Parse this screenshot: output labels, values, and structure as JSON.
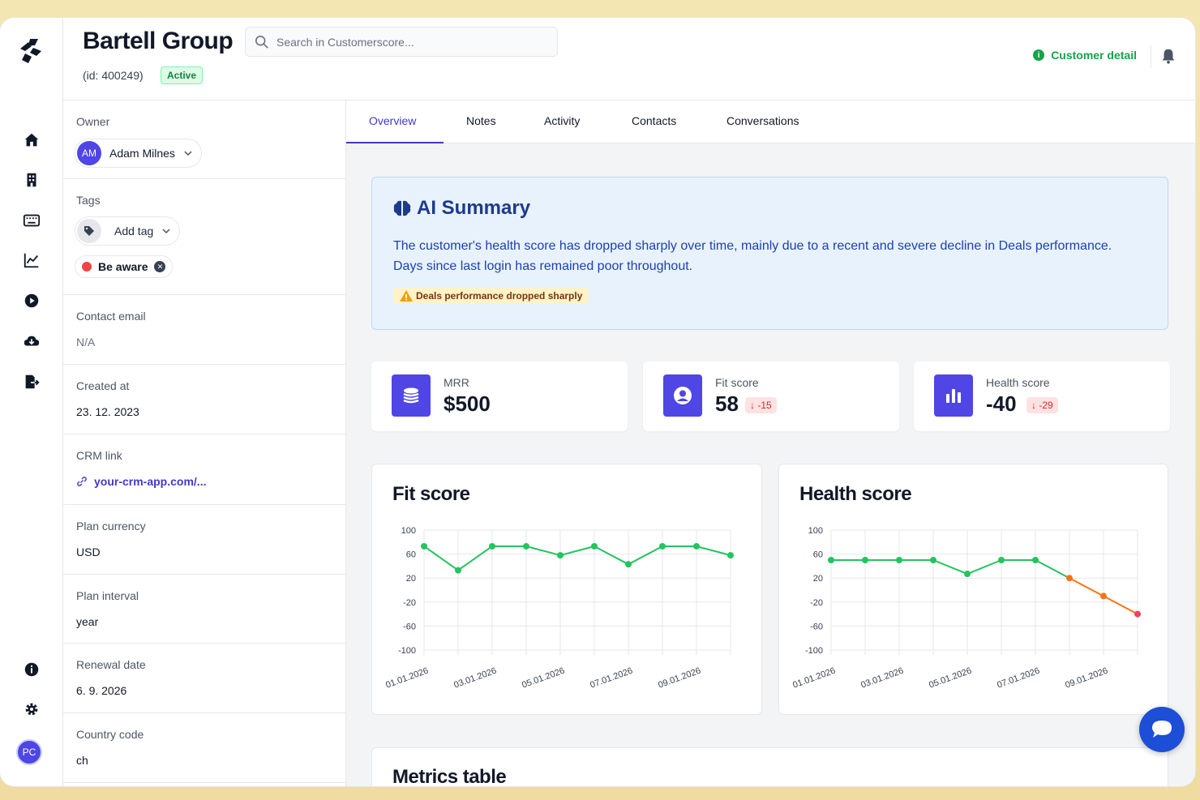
{
  "header": {
    "company_name": "Bartell Group",
    "company_id": "(id: 400249)",
    "status_badge": "Active",
    "search_placeholder": "Search in Customerscore...",
    "customer_detail_label": "Customer detail"
  },
  "rail": {
    "icons": [
      "home-icon",
      "building-icon",
      "keyboard-icon",
      "chart-line-icon",
      "play-circle-icon",
      "cloud-download-icon",
      "file-export-icon",
      "info-icon",
      "gear-icon"
    ],
    "user_initials": "PC"
  },
  "panel": {
    "owner": {
      "label": "Owner",
      "initials": "AM",
      "name": "Adam Milnes"
    },
    "tags": {
      "label": "Tags",
      "add_label": "Add tag",
      "items": [
        {
          "name": "Be aware",
          "color": "#ef4444"
        }
      ]
    },
    "contact_email": {
      "label": "Contact email",
      "value": "N/A"
    },
    "created_at": {
      "label": "Created at",
      "value": "23. 12. 2023"
    },
    "crm_link": {
      "label": "CRM link",
      "value": "your-crm-app.com/..."
    },
    "plan_currency": {
      "label": "Plan currency",
      "value": "USD"
    },
    "plan_interval": {
      "label": "Plan interval",
      "value": "year"
    },
    "renewal_date": {
      "label": "Renewal date",
      "value": "6. 9. 2026"
    },
    "country_code": {
      "label": "Country code",
      "value": "ch"
    }
  },
  "tabs": [
    {
      "label": "Overview",
      "active": true
    },
    {
      "label": "Notes",
      "active": false
    },
    {
      "label": "Activity",
      "active": false
    },
    {
      "label": "Contacts",
      "active": false
    },
    {
      "label": "Conversations",
      "active": false
    }
  ],
  "ai_summary": {
    "title": "AI Summary",
    "text": "The customer's health score has dropped sharply over time, mainly due to a recent and severe decline in Deals performance. Days since last login has remained poor throughout.",
    "warning": "Deals performance dropped sharply"
  },
  "kpis": [
    {
      "label": "MRR",
      "value": "$500",
      "delta": ""
    },
    {
      "label": "Fit score",
      "value": "58",
      "delta": "-15"
    },
    {
      "label": "Health score",
      "value": "-40",
      "delta": "-29"
    }
  ],
  "chart_data": [
    {
      "type": "line",
      "title": "Fit score",
      "x": [
        "01.01.2026",
        "02.01.2026",
        "03.01.2026",
        "04.01.2026",
        "05.01.2026",
        "06.01.2026",
        "07.01.2026",
        "08.01.2026",
        "09.01.2026",
        "10.01.2026"
      ],
      "x_tick_labels": [
        "01.01.2026",
        "03.01.2026",
        "05.01.2026",
        "07.01.2026",
        "09.01.2026"
      ],
      "series": [
        {
          "values": [
            73,
            33,
            73,
            73,
            58,
            73,
            43,
            73,
            73,
            58
          ],
          "color": "#22c55e"
        }
      ],
      "ylim": [
        -100,
        100
      ],
      "yticks": [
        100,
        60,
        20,
        -20,
        -60,
        -100
      ],
      "grid": true
    },
    {
      "type": "line",
      "title": "Health score",
      "x": [
        "01.01.2026",
        "02.01.2026",
        "03.01.2026",
        "04.01.2026",
        "05.01.2026",
        "06.01.2026",
        "07.01.2026",
        "08.01.2026",
        "09.01.2026",
        "10.01.2026"
      ],
      "x_tick_labels": [
        "01.01.2026",
        "03.01.2026",
        "05.01.2026",
        "07.01.2026",
        "09.01.2026"
      ],
      "series": [
        {
          "values": [
            50,
            50,
            50,
            50,
            27,
            50,
            50,
            20,
            -10,
            -40
          ],
          "color": "#22c55e",
          "warning_color": "#f97316",
          "danger_color": "#f43f5e"
        }
      ],
      "ylim": [
        -100,
        100
      ],
      "yticks": [
        100,
        60,
        20,
        -20,
        -60,
        -100
      ],
      "grid": true
    }
  ],
  "metrics_table": {
    "title": "Metrics table"
  }
}
